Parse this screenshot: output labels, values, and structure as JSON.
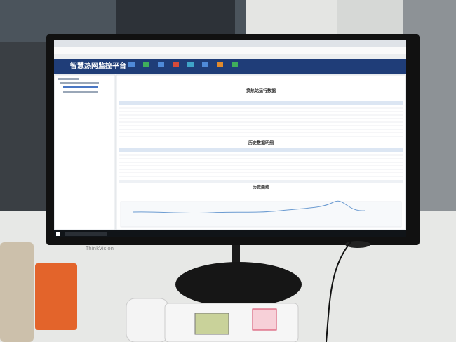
{
  "screen": {
    "app_title": "智慧热网监控平台",
    "sections": [
      "换热站运行数据",
      "历史数据明细",
      "历史曲线"
    ]
  },
  "monitor": {
    "brand": "ThinkVision"
  }
}
